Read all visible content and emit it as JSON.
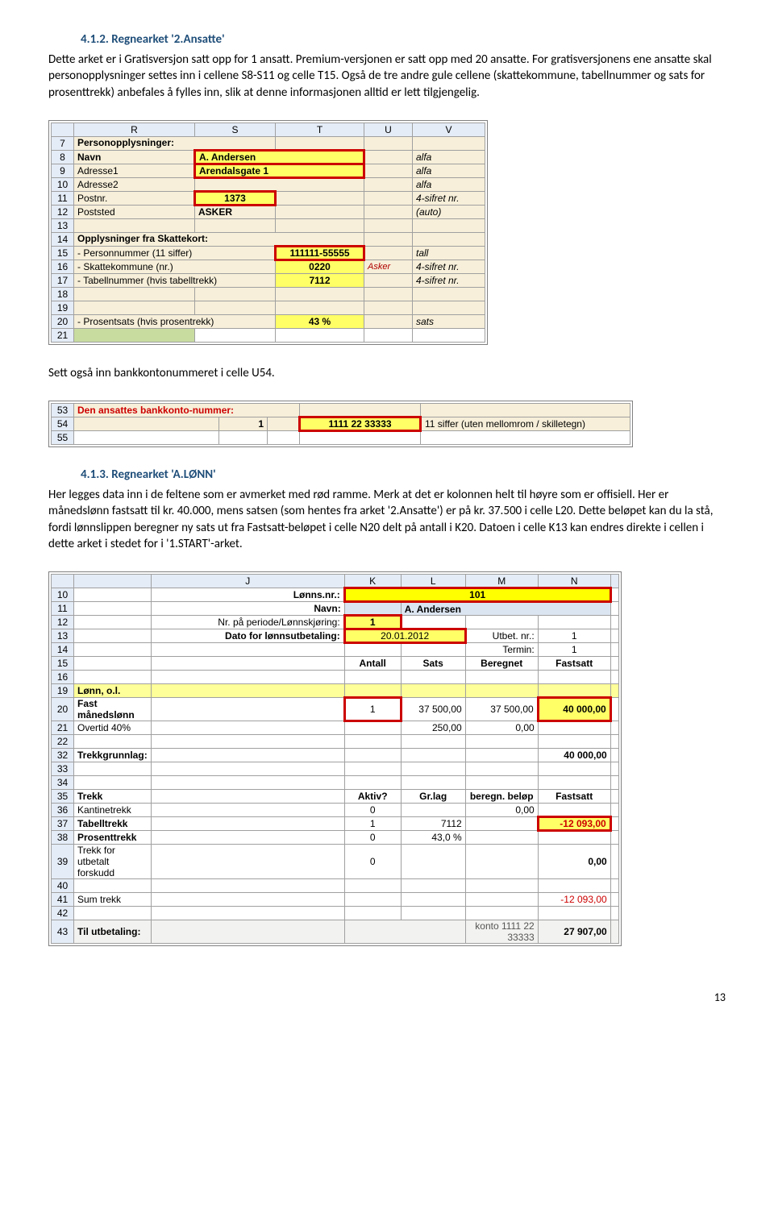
{
  "doc": {
    "section412_title": "4.1.2.  Regnearket '2.Ansatte'",
    "para1": "Dette arket er i Gratisversjon satt opp for 1 ansatt. Premium-versjonen er satt opp med 20 ansatte. For gratisversjonens ene ansatte skal personopplysninger settes inn i cellene S8-S11 og celle T15. Også de tre andre gule cellene (skattekommune, tabellnummer og sats for prosenttrekk) anbefales å fylles inn, slik at denne informasjonen alltid er lett tilgjengelig.",
    "para2": "Sett også inn bankkontonummeret i celle U54.",
    "section413_title": "4.1.3.  Regnearket 'A.LØNN'",
    "para3": "Her legges data inn i de feltene som er avmerket med rød ramme. Merk at det er kolonnen helt til høyre som er offisiell. Her er månedslønn fastsatt til kr. 40.000, mens satsen (som hentes fra arket '2.Ansatte') er på kr. 37.500 i celle L20. Dette beløpet kan du la stå, fordi lønnslippen beregner ny sats ut fra Fastsatt-beløpet i celle N20 delt på antall i K20. Datoen i celle K13 kan endres direkte i cellen i dette arket i stedet for i '1.START'-arket.",
    "pagenum": "13"
  },
  "tbl1": {
    "cols": [
      "",
      "R",
      "S",
      "T",
      "U",
      "V"
    ],
    "rows": [
      {
        "r": "7",
        "cells": [
          {
            "t": "Personopplysninger:",
            "cls": "bold",
            "colspan": 2
          }
        ],
        "bg": "tan"
      },
      {
        "r": "8",
        "cells": [
          {
            "t": "Navn",
            "cls": "bold"
          },
          {
            "t": "A. Andersen",
            "cls": "bold redborder yellow",
            "colspan": 2
          },
          {
            "t": ""
          },
          {
            "t": "alfa",
            "cls": "italic"
          }
        ],
        "bg": "tan"
      },
      {
        "r": "9",
        "cells": [
          {
            "t": "Adresse1"
          },
          {
            "t": "Arendalsgate 1",
            "cls": "bold redborder yellow",
            "colspan": 2
          },
          {
            "t": ""
          },
          {
            "t": "alfa",
            "cls": "italic"
          }
        ],
        "bg": "tan"
      },
      {
        "r": "10",
        "cells": [
          {
            "t": "Adresse2"
          },
          {
            "t": "",
            "colspan": 2
          },
          {
            "t": ""
          },
          {
            "t": "alfa",
            "cls": "italic"
          }
        ],
        "bg": "tan"
      },
      {
        "r": "11",
        "cells": [
          {
            "t": "Postnr."
          },
          {
            "t": "1373",
            "cls": "bold redborder yellow center"
          },
          {
            "t": ""
          },
          {
            "t": ""
          },
          {
            "t": "4-sifret nr.",
            "cls": "italic"
          }
        ],
        "bg": "tan"
      },
      {
        "r": "12",
        "cells": [
          {
            "t": "Poststed"
          },
          {
            "t": "ASKER",
            "cls": "bold"
          },
          {
            "t": ""
          },
          {
            "t": ""
          },
          {
            "t": "(auto)",
            "cls": "italic"
          }
        ],
        "bg": "tan"
      },
      {
        "r": "13",
        "cells": [
          {
            "t": ""
          }
        ],
        "bg": "tan"
      },
      {
        "r": "14",
        "cells": [
          {
            "t": "Opplysninger fra Skattekort:",
            "cls": "bold",
            "colspan": 3
          }
        ],
        "bg": "tan"
      },
      {
        "r": "15",
        "cells": [
          {
            "t": " - Personnummer (11 siffer)",
            "colspan": 2
          },
          {
            "t": "111111-55555",
            "cls": "bold redborder yellow center"
          },
          {
            "t": "",
            "cls": ""
          },
          {
            "t": "tall",
            "cls": "italic"
          }
        ],
        "bg": "tan"
      },
      {
        "r": "16",
        "cells": [
          {
            "t": " - Skattekommune (nr.)",
            "colspan": 2
          },
          {
            "t": "0220",
            "cls": "bold yellow center"
          },
          {
            "t": "Asker",
            "cls": "red-annot"
          },
          {
            "t": "4-sifret nr.",
            "cls": "italic"
          }
        ],
        "bg": "tan"
      },
      {
        "r": "17",
        "cells": [
          {
            "t": " - Tabellnummer (hvis tabelltrekk)",
            "colspan": 2
          },
          {
            "t": "7112",
            "cls": "bold yellow center"
          },
          {
            "t": ""
          },
          {
            "t": "4-sifret nr.",
            "cls": "italic"
          }
        ],
        "bg": "tan"
      },
      {
        "r": "18",
        "cells": [
          {
            "t": ""
          }
        ],
        "bg": "tan"
      },
      {
        "r": "19",
        "cells": [
          {
            "t": ""
          }
        ],
        "bg": "tan"
      },
      {
        "r": "20",
        "cells": [
          {
            "t": " - Prosentsats (hvis prosentrekk)",
            "colspan": 2
          },
          {
            "t": "43 %",
            "cls": "bold yellow center"
          },
          {
            "t": ""
          },
          {
            "t": "sats",
            "cls": "italic"
          }
        ],
        "bg": "tan"
      },
      {
        "r": "21",
        "cells": [
          {
            "t": "",
            "cls": "selectcell"
          }
        ],
        "bg": ""
      }
    ],
    "colwidths": [
      "28px",
      "150px",
      "100px",
      "110px",
      "60px",
      "90px"
    ]
  },
  "tbl2": {
    "rows": [
      {
        "r": "53",
        "cells": [
          {
            "t": "Den ansattes bankkonto-nummer:",
            "cls": "bold redtext",
            "colspan": 3
          }
        ],
        "bg": "tan"
      },
      {
        "r": "54",
        "cells": [
          {
            "t": ""
          },
          {
            "t": "1",
            "cls": "right bold"
          },
          {
            "t": "",
            "cls": ""
          },
          {
            "t": "1111 22 33333",
            "cls": "bold yellow redborder center"
          },
          {
            "t": "11 siffer (uten mellomrom / skilletegn)",
            "cls": ""
          }
        ],
        "bg": "tan"
      },
      {
        "r": "55",
        "cells": [
          {
            "t": ""
          }
        ]
      }
    ],
    "colwidths": [
      "28px",
      "180px",
      "60px",
      "40px",
      "150px",
      "260px"
    ]
  },
  "tbl3": {
    "cols": [
      "",
      "",
      "J",
      "K",
      "L",
      "M",
      "N",
      ""
    ],
    "rows": [
      {
        "r": "10",
        "cells": [
          {
            "t": ""
          },
          {
            "t": "Lønns.nr.:",
            "cls": "bold right"
          },
          {
            "t": "101",
            "cls": "bold center yellow-dk redborder",
            "colspan": 4
          }
        ]
      },
      {
        "r": "11",
        "cells": [
          {
            "t": ""
          },
          {
            "t": "Navn:",
            "cls": "bold right"
          },
          {
            "t": "",
            "cls": "bluebg"
          },
          {
            "t": "A. Andersen",
            "cls": "bold bluebg",
            "colspan": 3
          }
        ]
      },
      {
        "r": "12",
        "cells": [
          {
            "t": ""
          },
          {
            "t": "Nr. på periode/Lønnskjøring:",
            "cls": "right"
          },
          {
            "t": "1",
            "cls": "bold center yellow redborder"
          },
          {
            "t": ""
          },
          {
            "t": ""
          },
          {
            "t": ""
          }
        ]
      },
      {
        "r": "13",
        "cells": [
          {
            "t": ""
          },
          {
            "t": "Dato for lønnsutbetaling:",
            "cls": "bold right"
          },
          {
            "t": "20.01.2012",
            "cls": "center yellow redborder",
            "colspan": 2
          },
          {
            "t": "Utbet. nr.:",
            "cls": "right"
          },
          {
            "t": "1",
            "cls": "center"
          }
        ]
      },
      {
        "r": "14",
        "cells": [
          {
            "t": ""
          },
          {
            "t": ""
          },
          {
            "t": ""
          },
          {
            "t": ""
          },
          {
            "t": "Termin:",
            "cls": "right"
          },
          {
            "t": "1",
            "cls": "center"
          }
        ]
      },
      {
        "r": "15",
        "cells": [
          {
            "t": ""
          },
          {
            "t": ""
          },
          {
            "t": "Antall",
            "cls": "bold center"
          },
          {
            "t": "Sats",
            "cls": "bold center"
          },
          {
            "t": "Beregnet",
            "cls": "bold center"
          },
          {
            "t": "Fastsatt",
            "cls": "bold center"
          }
        ]
      },
      {
        "r": "16",
        "cells": [
          {
            "t": ""
          }
        ]
      },
      {
        "r": "19",
        "cells": [
          {
            "t": "Lønn, o.l.",
            "cls": "bold"
          }
        ],
        "bg": "hl-row"
      },
      {
        "r": "20",
        "cells": [
          {
            "t": "Fast månedslønn",
            "cls": "bold"
          },
          {
            "t": ""
          },
          {
            "t": "1",
            "cls": "center redborder"
          },
          {
            "t": "37 500,00",
            "cls": "right"
          },
          {
            "t": "37 500,00",
            "cls": "right"
          },
          {
            "t": "40 000,00",
            "cls": "right bold yellow redborder"
          }
        ]
      },
      {
        "r": "21",
        "cells": [
          {
            "t": "Overtid 40%"
          },
          {
            "t": ""
          },
          {
            "t": ""
          },
          {
            "t": "250,00",
            "cls": "right"
          },
          {
            "t": "0,00",
            "cls": "right"
          },
          {
            "t": ""
          }
        ]
      },
      {
        "r": "22",
        "cells": [
          {
            "t": ""
          }
        ]
      },
      {
        "r": "32",
        "cells": [
          {
            "t": "Trekkgrunnlag:",
            "cls": "bold"
          },
          {
            "t": ""
          },
          {
            "t": ""
          },
          {
            "t": ""
          },
          {
            "t": ""
          },
          {
            "t": "40 000,00",
            "cls": "right bold"
          }
        ]
      },
      {
        "r": "33",
        "cells": [
          {
            "t": ""
          }
        ]
      },
      {
        "r": "34",
        "cells": [
          {
            "t": ""
          }
        ]
      },
      {
        "r": "35",
        "cells": [
          {
            "t": "Trekk",
            "cls": "bold"
          },
          {
            "t": ""
          },
          {
            "t": "Aktiv?",
            "cls": "bold center"
          },
          {
            "t": "Gr.lag",
            "cls": "bold center"
          },
          {
            "t": "beregn. beløp",
            "cls": "bold center"
          },
          {
            "t": "Fastsatt",
            "cls": "bold center"
          }
        ]
      },
      {
        "r": "36",
        "cells": [
          {
            "t": "Kantinetrekk"
          },
          {
            "t": ""
          },
          {
            "t": "0",
            "cls": "center"
          },
          {
            "t": ""
          },
          {
            "t": "0,00",
            "cls": "right"
          },
          {
            "t": ""
          }
        ]
      },
      {
        "r": "37",
        "cells": [
          {
            "t": "Tabelltrekk",
            "cls": "bold"
          },
          {
            "t": ""
          },
          {
            "t": "1",
            "cls": "center"
          },
          {
            "t": "7112",
            "cls": "right"
          },
          {
            "t": ""
          },
          {
            "t": "-12 093,00",
            "cls": "right bold redtext yellow redborder"
          }
        ]
      },
      {
        "r": "38",
        "cells": [
          {
            "t": "Prosenttrekk",
            "cls": "bold"
          },
          {
            "t": ""
          },
          {
            "t": "0",
            "cls": "center"
          },
          {
            "t": "43,0 %",
            "cls": "right"
          },
          {
            "t": ""
          },
          {
            "t": ""
          }
        ]
      },
      {
        "r": "39",
        "cells": [
          {
            "t": "  Trekk for utbetalt forskudd"
          },
          {
            "t": ""
          },
          {
            "t": "0",
            "cls": "center"
          },
          {
            "t": ""
          },
          {
            "t": ""
          },
          {
            "t": "0,00",
            "cls": "right bold"
          }
        ]
      },
      {
        "r": "40",
        "cells": [
          {
            "t": ""
          }
        ]
      },
      {
        "r": "41",
        "cells": [
          {
            "t": "Sum trekk"
          },
          {
            "t": ""
          },
          {
            "t": ""
          },
          {
            "t": ""
          },
          {
            "t": ""
          },
          {
            "t": "-12 093,00",
            "cls": "right redtext"
          }
        ]
      },
      {
        "r": "42",
        "cells": [
          {
            "t": ""
          }
        ]
      },
      {
        "r": "43",
        "cells": [
          {
            "t": "Til utbetaling:",
            "cls": "bold"
          },
          {
            "t": ""
          },
          {
            "t": "",
            "colspan": 2
          },
          {
            "t": "konto 1111 22 33333",
            "cls": "right note"
          },
          {
            "t": "27 907,00",
            "cls": "right bold"
          }
        ],
        "bg": "grayish"
      }
    ],
    "colwidths": [
      "28px",
      "12px",
      "240px",
      "70px",
      "80px",
      "90px",
      "90px",
      "10px"
    ]
  }
}
